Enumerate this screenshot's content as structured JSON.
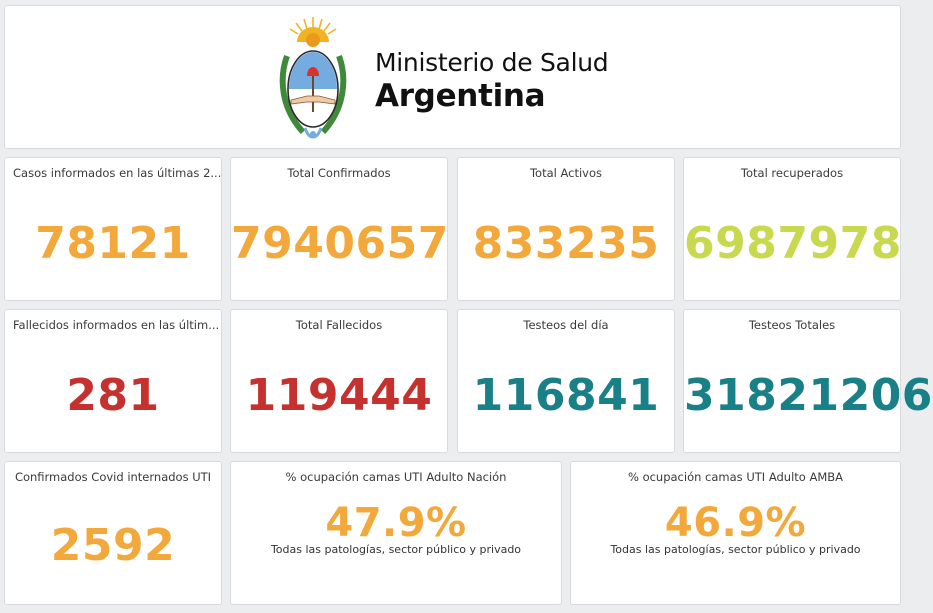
{
  "header": {
    "line1": "Ministerio de Salud",
    "line2": "Argentina",
    "emblem_icon": "argentina-coat-of-arms-icon"
  },
  "colors": {
    "orange": "#f2a83b",
    "green": "#c8d84f",
    "red": "#c4312e",
    "teal": "#198087",
    "background": "#ebedef"
  },
  "cards_row1": [
    {
      "title": "Casos informados en las últimas 2...",
      "value": "78121",
      "color": "orange"
    },
    {
      "title": "Total Confirmados",
      "value": "7940657",
      "color": "orange"
    },
    {
      "title": "Total Activos",
      "value": "833235",
      "color": "orange"
    },
    {
      "title": "Total recuperados",
      "value": "6987978",
      "color": "green"
    }
  ],
  "cards_row2": [
    {
      "title": "Fallecidos informados en las últim...",
      "value": "281",
      "color": "red"
    },
    {
      "title": "Total Fallecidos",
      "value": "119444",
      "color": "red"
    },
    {
      "title": "Testeos del día",
      "value": "116841",
      "color": "teal"
    },
    {
      "title": "Testeos Totales",
      "value": "31821206",
      "color": "teal"
    }
  ],
  "card_uti": {
    "title": "Confirmados Covid internados UTI",
    "value": "2592",
    "color": "orange"
  },
  "card_nacion": {
    "title": "% ocupación camas UTI Adulto Nación",
    "value": "47.9%",
    "subtitle": "Todas las patologías, sector público y privado",
    "color": "orange"
  },
  "card_amba": {
    "title": "% ocupación camas UTI Adulto AMBA",
    "value": "46.9%",
    "subtitle": "Todas las patologías, sector público y privado",
    "color": "orange"
  }
}
